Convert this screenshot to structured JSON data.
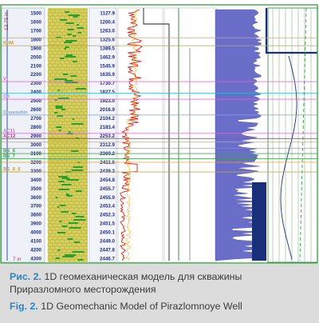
{
  "diagram": {
    "depths": [
      "1500",
      "1600",
      "1700",
      "1800",
      "1900",
      "2000",
      "2100",
      "2200",
      "2300",
      "2400",
      "2500",
      "2600",
      "2700",
      "2800",
      "2900",
      "3000",
      "3100",
      "3200",
      "3300",
      "3400",
      "3500",
      "3600",
      "3700",
      "3800",
      "3900",
      "4000",
      "4100",
      "4200",
      "4300"
    ],
    "md_values": [
      "1127.9",
      "1200.4",
      "1263.0",
      "1325.6",
      "1389.5",
      "1462.9",
      "1545.9",
      "1635.9",
      "1730.7",
      "1827.5",
      "1923.0",
      "2016.9",
      "2104.2",
      "2183.4",
      "2253.2",
      "2312.9",
      "2369.2",
      "2411.6",
      "2439.2",
      "2454.8",
      "2455.7",
      "2455.9",
      "2453.4",
      "2452.3",
      "2451.5",
      "2450.1",
      "2449.0",
      "2447.8",
      "2446.7"
    ],
    "casing_label": "12.75 in",
    "bottom_label": "7 in",
    "formations": [
      {
        "name": "KhM",
        "depth": 1880,
        "color": "#c9a23a"
      },
      {
        "name": "Vt",
        "depth": 2290,
        "color": "#d46bd6"
      },
      {
        "name": "Ch",
        "depth": 2490,
        "color": "#d46bd6"
      },
      {
        "name": "Chuvashin",
        "depth": 2670,
        "color": "#7aa6d6"
      },
      {
        "name": "AC11",
        "depth": 2880,
        "color": "#d46bd6"
      },
      {
        "name": "AC12",
        "depth": 2940,
        "color": "#c04080"
      },
      {
        "name": "BS_6",
        "depth": 3110,
        "color": "#40a050"
      },
      {
        "name": "BS_7",
        "depth": 3170,
        "color": "#40a050"
      },
      {
        "name": "BS_8_6",
        "depth": 3320,
        "color": "#c9a23a"
      }
    ],
    "colors": {
      "lithology_sand": "#d8d25a",
      "gamma_green": "#2ca02c",
      "density_red": "#e02010",
      "fill_purple": "#6a6ec8",
      "fill_navy": "#1a2f7a",
      "frame_green": "#2f9e3a",
      "line_orange": "#f0a030",
      "line_cyan": "#30b8d8"
    }
  },
  "caption": {
    "ru_label": "Рис. 2.",
    "ru_text": " 1D геомеханическая модель для скважины Приразломного месторождения",
    "en_label": "Fig. 2.",
    "en_text": " 1D Geomechanic Model of Pirazlomnoye Well"
  }
}
